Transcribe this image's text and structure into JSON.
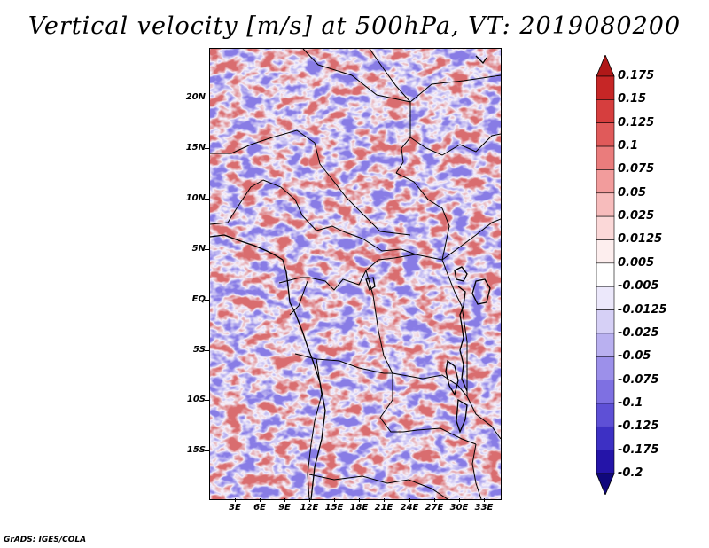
{
  "title": "Vertical velocity [m/s] at 500hPa, VT: 2019080200",
  "footer": "GrADS: IGES/COLA",
  "map": {
    "lat_labels": [
      "20N",
      "15N",
      "10N",
      "5N",
      "EQ",
      "5S",
      "10S",
      "15S"
    ],
    "lon_labels": [
      "3E",
      "6E",
      "9E",
      "12E",
      "15E",
      "18E",
      "21E",
      "24E",
      "27E",
      "30E",
      "33E"
    ]
  },
  "colorbar": {
    "levels": [
      "0.175",
      "0.15",
      "0.125",
      "0.1",
      "0.075",
      "0.05",
      "0.025",
      "0.0125",
      "0.005",
      "-0.005",
      "-0.0125",
      "-0.025",
      "-0.05",
      "-0.075",
      "-0.1",
      "-0.125",
      "-0.175",
      "-0.2"
    ],
    "colors": [
      "#b01818",
      "#c62626",
      "#d63e3e",
      "#e05a5a",
      "#ea7c7c",
      "#f29c9c",
      "#f7bcbc",
      "#fbd8d8",
      "#fdeeee",
      "#ffffff",
      "#ece8fb",
      "#d6d0f6",
      "#b9b0f0",
      "#9c90ea",
      "#7e70e2",
      "#5e50d6",
      "#3d30c4",
      "#2414a8",
      "#10087c"
    ]
  }
}
